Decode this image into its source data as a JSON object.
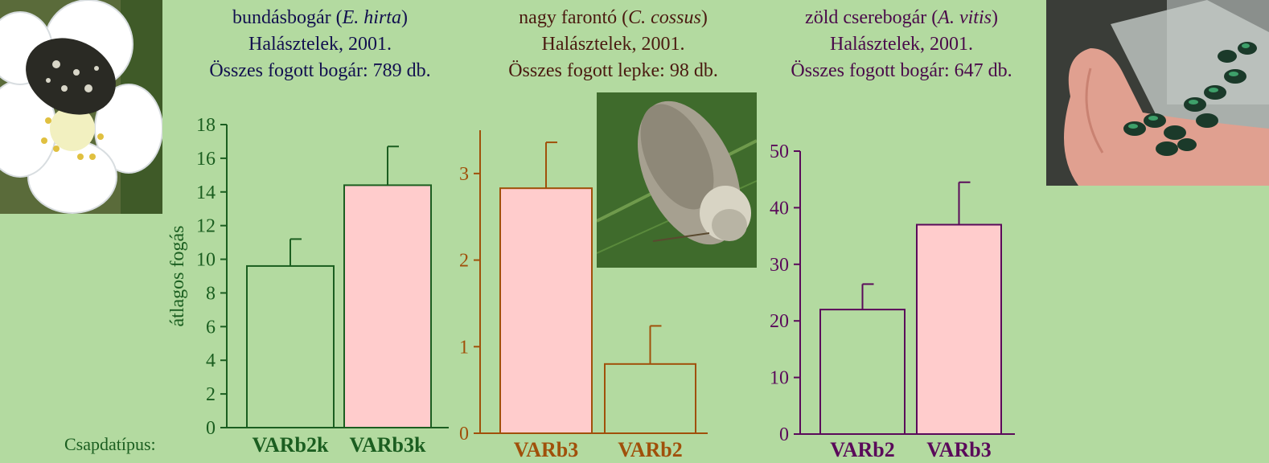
{
  "panels": [
    {
      "title_prefix": "bundásbogár (",
      "title_species": "E. hirta",
      "title_suffix": ")",
      "location": "Halásztelek, 2001.",
      "total": "Összes fogott bogár: 789 db.",
      "photo": "bee-on-blossom-photo"
    },
    {
      "title_prefix": "nagy farontó (",
      "title_species": "C. cossus",
      "title_suffix": ")",
      "location": "Halásztelek, 2001.",
      "total": "Összes fogott lepke: 98 db.",
      "photo": "moth-on-leaf-photo"
    },
    {
      "title_prefix": "zöld cserebogár (",
      "title_species": "A. vitis",
      "title_suffix": ")",
      "location": "Halásztelek, 2001.",
      "total": "Összes fogott bogár: 647 db.",
      "photo": "green-beetles-in-hand-photo"
    }
  ],
  "trap_type_label": "Csapdatípus:",
  "colors": {
    "background": "#b3daa0",
    "pink_bar": "#ffcccc",
    "green_axis": "#1b5e20",
    "orange_axis": "#a0500a",
    "purple_axis": "#5a0a5a"
  },
  "chart_data": [
    {
      "type": "bar",
      "categories": [
        "VARb2k",
        "VARb3k"
      ],
      "values": [
        9.6,
        14.4
      ],
      "errors": [
        1.6,
        2.3
      ],
      "bar_fills": [
        "#ffffff00",
        "#ffcccc"
      ],
      "ylabel": "átlagos fogás",
      "ylim": [
        0,
        18
      ],
      "yticks": [
        "0",
        "2",
        "4",
        "6",
        "8",
        "10",
        "12",
        "14",
        "16",
        "18"
      ],
      "axis_color": "#1b5e20"
    },
    {
      "type": "bar",
      "categories": [
        "VARb3",
        "VARb2"
      ],
      "values": [
        2.83,
        0.8
      ],
      "errors": [
        0.53,
        0.44
      ],
      "bar_fills": [
        "#ffcccc",
        "#ffffff00"
      ],
      "ylabel": "",
      "ylim": [
        0,
        3.5
      ],
      "yticks": [
        "0",
        "1",
        "2",
        "3"
      ],
      "axis_color": "#a0500a"
    },
    {
      "type": "bar",
      "categories": [
        "VARb2",
        "VARb3"
      ],
      "values": [
        22,
        37
      ],
      "errors": [
        4.5,
        7.5
      ],
      "bar_fills": [
        "#ffffff00",
        "#ffcccc"
      ],
      "ylabel": "",
      "ylim": [
        0,
        50
      ],
      "yticks": [
        "0",
        "10",
        "20",
        "30",
        "40",
        "50"
      ],
      "axis_color": "#5a0a5a"
    }
  ]
}
